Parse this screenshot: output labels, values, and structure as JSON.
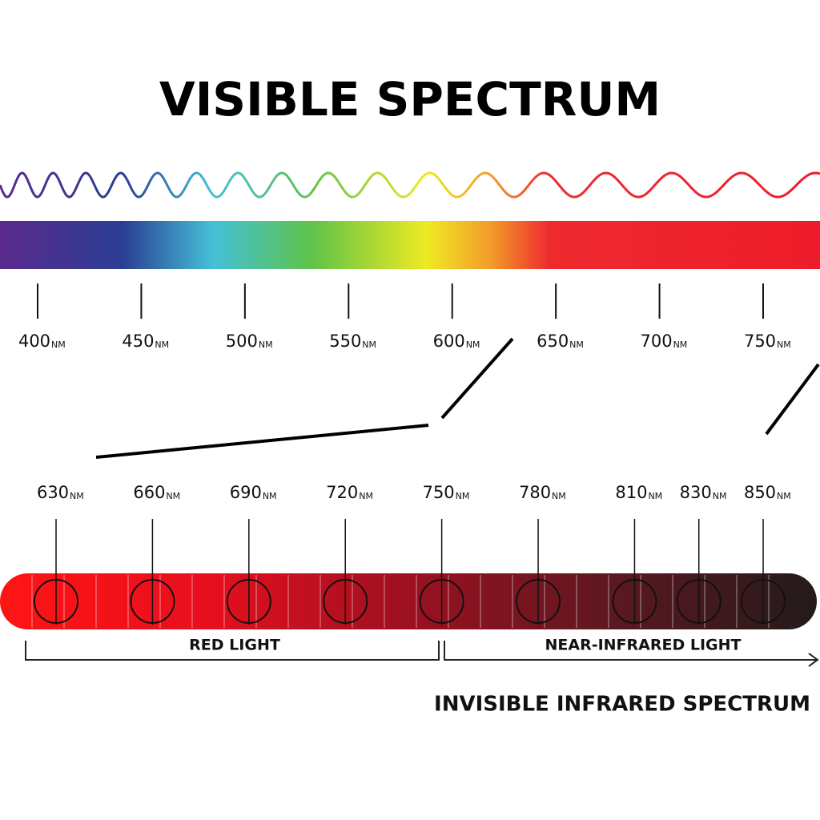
{
  "title": "VISIBLE SPECTRUM",
  "visible_scale": {
    "ticks": [
      {
        "label": 400,
        "unit": "NM"
      },
      {
        "label": 450,
        "unit": "NM"
      },
      {
        "label": 500,
        "unit": "NM"
      },
      {
        "label": 550,
        "unit": "NM"
      },
      {
        "label": 600,
        "unit": "NM"
      },
      {
        "label": 650,
        "unit": "NM"
      },
      {
        "label": 700,
        "unit": "NM"
      },
      {
        "label": 750,
        "unit": "NM"
      }
    ]
  },
  "detail_scale": {
    "ticks": [
      {
        "label": 630,
        "unit": "NM"
      },
      {
        "label": 660,
        "unit": "NM"
      },
      {
        "label": 690,
        "unit": "NM"
      },
      {
        "label": 720,
        "unit": "NM"
      },
      {
        "label": 750,
        "unit": "NM"
      },
      {
        "label": 780,
        "unit": "NM"
      },
      {
        "label": 810,
        "unit": "NM"
      },
      {
        "label": 830,
        "unit": "NM"
      },
      {
        "label": 850,
        "unit": "NM"
      }
    ]
  },
  "ranges": {
    "red": "RED LIGHT",
    "near_infrared": "NEAR-INFRARED LIGHT"
  },
  "footer": "INVISIBLE INFRARED SPECTRUM"
}
